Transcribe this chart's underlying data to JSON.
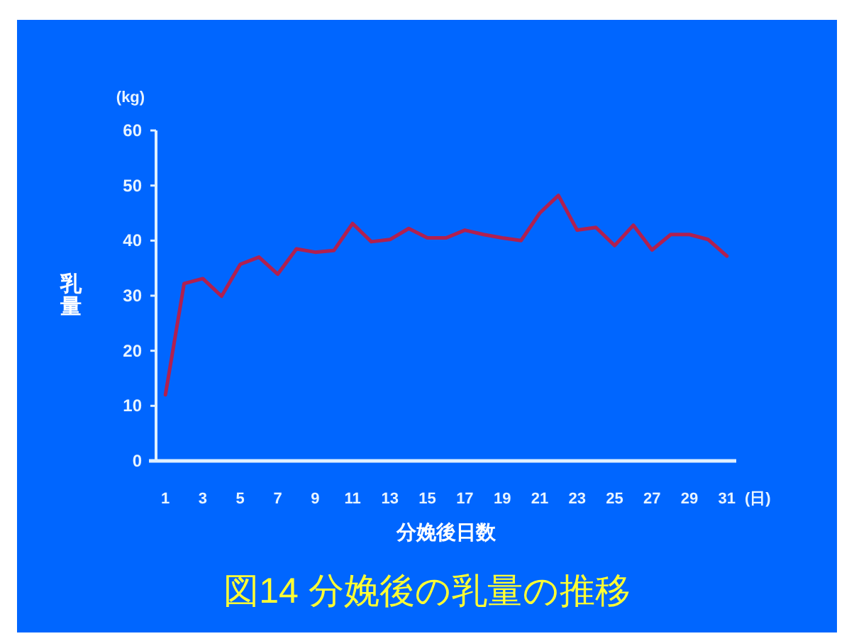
{
  "chart_data": {
    "type": "line",
    "title": "図14  分娩後の乳量の推移",
    "xlabel": "分娩後日数",
    "ylabel": "乳量",
    "annotations": [
      "(kg)",
      "(日)"
    ],
    "x": [
      1,
      2,
      3,
      4,
      5,
      6,
      7,
      8,
      9,
      10,
      11,
      12,
      13,
      14,
      15,
      16,
      17,
      18,
      19,
      20,
      21,
      22,
      23,
      24,
      25,
      26,
      27,
      28,
      29,
      30,
      31
    ],
    "xlim": [
      0.5,
      31.5
    ],
    "xticks": [
      1,
      3,
      5,
      7,
      9,
      11,
      13,
      15,
      17,
      19,
      21,
      23,
      25,
      27,
      29,
      31
    ],
    "color": "#b02050",
    "values": [
      12,
      32.2,
      33.1,
      29.9,
      35.7,
      37,
      33.9,
      38.5,
      37.9,
      38.2,
      43.1,
      39.8,
      40.2,
      42.2,
      40.5,
      40.5,
      41.9,
      41.1,
      40.5,
      40,
      45,
      48.2,
      41.9,
      42.4,
      39.1,
      42.8,
      38.3,
      41.1,
      41.1,
      40.2,
      37.2
    ],
    "ylim": [
      0,
      60
    ],
    "yticks": [
      0,
      10,
      20,
      30,
      40,
      50,
      60
    ]
  }
}
